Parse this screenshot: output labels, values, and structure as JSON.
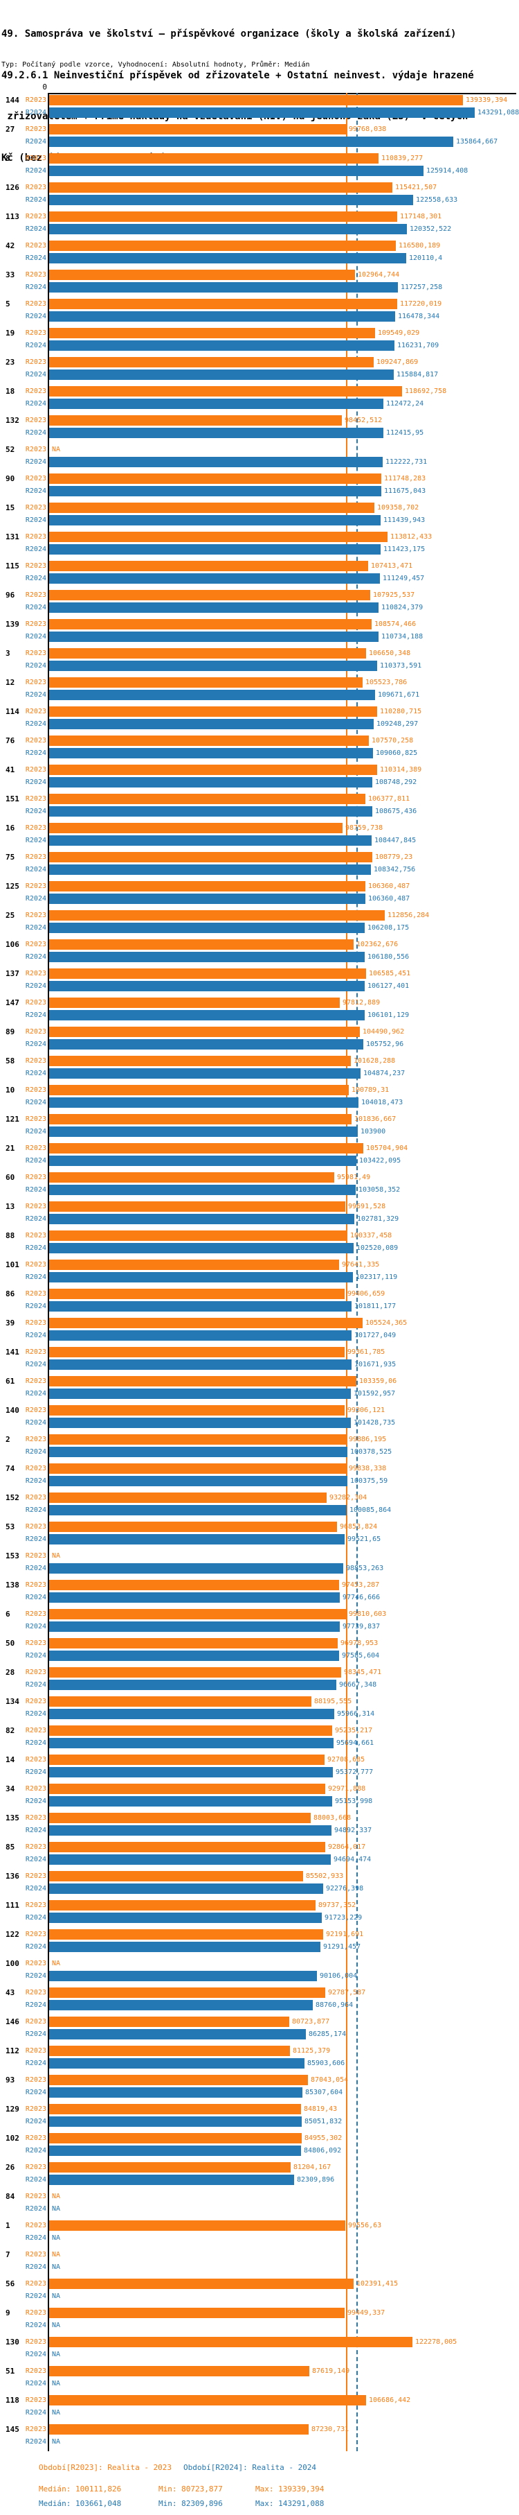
{
  "title": {
    "lines": [
      "49. Samospráva ve školství – příspěvkové organizace (školy a školská zařízení)",
      "49.2.6.1 Neinvestiční příspěvek od zřizovatele + Ostatní neinvest. výdaje hrazené",
      " zřizovatelem + Přímé náklady na vzdělávání (NIV) na jednoho žáka (ZŠ)  v celých",
      "Kč (bez jídelen a stravování)"
    ]
  },
  "subtitle": "Typ: Počítaný podle vzorce, Vyhodnocení: Absolutní hodnoty, Průměr: Medián",
  "axis": {
    "zero_label": "0"
  },
  "na_label": "NA",
  "colors": {
    "r2023": "#f97d12",
    "r2024": "#2478b4",
    "axis": "#000000"
  },
  "legend": {
    "r2023": {
      "period": "Období[R2023]: Realita - 2023",
      "median": "Medián: 100111,826",
      "min": "Min: 80723,877",
      "max": "Max: 139339,394"
    },
    "r2024": {
      "period": "Období[R2024]: Realita - 2024",
      "median": "Medián: 103661,048",
      "min": "Min: 82309,896",
      "max": "Max: 143291,088"
    }
  },
  "chart_data": {
    "type": "bar",
    "orientation": "horizontal",
    "unit": "Kč",
    "grid": false,
    "legend_position": "bottom",
    "xlim": [
      0,
      156000
    ],
    "categories": [
      "144",
      "27",
      "8",
      "126",
      "113",
      "42",
      "33",
      "5",
      "19",
      "23",
      "18",
      "132",
      "52",
      "90",
      "15",
      "131",
      "115",
      "96",
      "139",
      "3",
      "12",
      "114",
      "76",
      "41",
      "151",
      "16",
      "75",
      "125",
      "25",
      "106",
      "137",
      "147",
      "89",
      "58",
      "10",
      "121",
      "21",
      "60",
      "13",
      "88",
      "101",
      "86",
      "39",
      "141",
      "61",
      "140",
      "2",
      "74",
      "152",
      "53",
      "153",
      "138",
      "6",
      "50",
      "28",
      "134",
      "82",
      "14",
      "34",
      "135",
      "85",
      "136",
      "111",
      "122",
      "100",
      "43",
      "146",
      "112",
      "93",
      "129",
      "102",
      "26",
      "84",
      "1",
      "7",
      "56",
      "9",
      "130",
      "51",
      "118",
      "145"
    ],
    "series": [
      {
        "name": "R2023",
        "legend": "Období[R2023]: Realita - 2023",
        "median": 100111.826,
        "min": 80723.877,
        "max": 139339.394,
        "values": [
          139339.394,
          99768.038,
          110839.277,
          115421.507,
          117148.301,
          116580.189,
          102964.744,
          117220.019,
          109549.029,
          109247.869,
          118692.758,
          98452.512,
          null,
          111748.283,
          109358.702,
          113812.433,
          107413.471,
          107925.537,
          108574.466,
          106650.348,
          105523.786,
          110280.715,
          107570.258,
          110314.389,
          106377.811,
          98759.738,
          108779.23,
          106360.487,
          112856.284,
          102362.676,
          106585.451,
          97812.889,
          104490.962,
          101628.288,
          100789.31,
          101836.667,
          105704.904,
          95981.49,
          99691.528,
          100337.458,
          97641.335,
          99406.659,
          105524.365,
          99361.785,
          103359.06,
          99306.121,
          99886.195,
          99838.338,
          93282.304,
          96853.824,
          null,
          97453.287,
          99810.603,
          96978.953,
          98345.471,
          88195.555,
          95235.217,
          92708.685,
          92971.888,
          88003.668,
          92864.017,
          85502.933,
          89737.352,
          92191.691,
          null,
          92787.587,
          80723.877,
          81125.379,
          87043.054,
          84819.43,
          84955.302,
          81204.167,
          null,
          99556.63,
          null,
          102391.415,
          99449.337,
          122278.005,
          87619.149,
          106686.442,
          87230.731
        ],
        "labels": [
          "139339,394",
          "99768,038",
          "110839,277",
          "115421,507",
          "117148,301",
          "116580,189",
          "102964,744",
          "117220,019",
          "109549,029",
          "109247,869",
          "118692,758",
          "98452,512",
          "NA",
          "111748,283",
          "109358,702",
          "113812,433",
          "107413,471",
          "107925,537",
          "108574,466",
          "106650,348",
          "105523,786",
          "110280,715",
          "107570,258",
          "110314,389",
          "106377,811",
          "98759,738",
          "108779,23",
          "106360,487",
          "112856,284",
          "102362,676",
          "106585,451",
          "97812,889",
          "104490,962",
          "101628,288",
          "100789,31",
          "101836,667",
          "105704,904",
          "95981,49",
          "99691,528",
          "100337,458",
          "97641,335",
          "99406,659",
          "105524,365",
          "99361,785",
          "103359,06",
          "99306,121",
          "99886,195",
          "99838,338",
          "93282,304",
          "96853,824",
          "NA",
          "97453,287",
          "99810,603",
          "96978,953",
          "98345,471",
          "88195,555",
          "95235,217",
          "92708,685",
          "92971,888",
          "88003,668",
          "92864,017",
          "85502,933",
          "89737,352",
          "92191,691",
          "NA",
          "92787,587",
          "80723,877",
          "81125,379",
          "87043,054",
          "84819,43",
          "84955,302",
          "81204,167",
          "NA",
          "99556,63",
          "NA",
          "102391,415",
          "99449,337",
          "122278,005",
          "87619,149",
          "106686,442",
          "87230,731"
        ]
      },
      {
        "name": "R2024",
        "legend": "Období[R2024]: Realita - 2024",
        "median": 103661.048,
        "min": 82309.896,
        "max": 143291.088,
        "values": [
          143291.088,
          135864.667,
          125914.408,
          122558.633,
          120352.522,
          120110.4,
          117257.258,
          116478.344,
          116231.709,
          115884.817,
          112472.24,
          112415.95,
          112222.731,
          111675.043,
          111439.943,
          111423.175,
          111249.457,
          110824.379,
          110734.188,
          110373.591,
          109671.671,
          109248.297,
          109060.825,
          108748.292,
          108675.436,
          108447.845,
          108342.756,
          106360.487,
          106208.175,
          106180.556,
          106127.401,
          106101.129,
          105752.96,
          104874.237,
          104018.473,
          103900,
          103422.095,
          103058.352,
          102781.329,
          102520.089,
          102317.119,
          101811.177,
          101727.049,
          101671.935,
          101592.957,
          101428.735,
          100378.525,
          100375.59,
          100085.864,
          99521.65,
          98853.263,
          97746.666,
          97739.837,
          97585.604,
          96667.348,
          95966.314,
          95694.661,
          95372.777,
          95153.998,
          94892.337,
          94694.474,
          92276.398,
          91723.229,
          91291.457,
          90106.004,
          88760.964,
          86285.174,
          85903.606,
          85307.604,
          85051.832,
          84806.092,
          82309.896,
          null,
          null,
          null,
          null,
          null,
          null,
          null,
          null,
          null
        ],
        "labels": [
          "143291,088",
          "135864,667",
          "125914,408",
          "122558,633",
          "120352,522",
          "120110,4",
          "117257,258",
          "116478,344",
          "116231,709",
          "115884,817",
          "112472,24",
          "112415,95",
          "112222,731",
          "111675,043",
          "111439,943",
          "111423,175",
          "111249,457",
          "110824,379",
          "110734,188",
          "110373,591",
          "109671,671",
          "109248,297",
          "109060,825",
          "108748,292",
          "108675,436",
          "108447,845",
          "108342,756",
          "106360,487",
          "106208,175",
          "106180,556",
          "106127,401",
          "106101,129",
          "105752,96",
          "104874,237",
          "104018,473",
          "103900",
          "103422,095",
          "103058,352",
          "102781,329",
          "102520,089",
          "102317,119",
          "101811,177",
          "101727,049",
          "101671,935",
          "101592,957",
          "101428,735",
          "100378,525",
          "100375,59",
          "100085,864",
          "99521,65",
          "98853,263",
          "97746,666",
          "97739,837",
          "97585,604",
          "96667,348",
          "95966,314",
          "95694,661",
          "95372,777",
          "95153,998",
          "94892,337",
          "94694,474",
          "92276,398",
          "91723,229",
          "91291,457",
          "90106,004",
          "88760,964",
          "86285,174",
          "85903,606",
          "85307,604",
          "85051,832",
          "84806,092",
          "82309,896",
          "NA",
          "NA",
          "NA",
          "NA",
          "NA",
          "NA",
          "NA",
          "NA",
          "NA"
        ]
      }
    ]
  }
}
